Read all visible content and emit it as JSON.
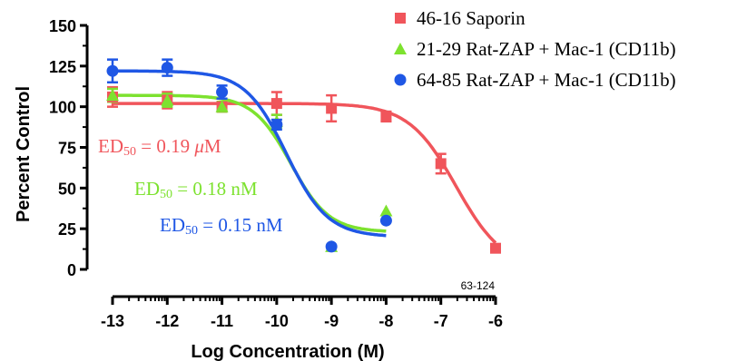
{
  "chart_data": {
    "type": "scatter",
    "xlabel": "Log Concentration (M)",
    "ylabel": "Percent Control",
    "xlim": [
      -13,
      -6
    ],
    "ylim": [
      0,
      150
    ],
    "xticks": [
      "-13",
      "-12",
      "-11",
      "-10",
      "-9",
      "-8",
      "-7",
      "-6"
    ],
    "yticks": [
      "0",
      "25",
      "50",
      "75",
      "100",
      "125",
      "150"
    ],
    "series": [
      {
        "name": "46-16 Saporin",
        "color": "#f0555b",
        "marker": "square",
        "x": [
          -13,
          -12,
          -11,
          -10,
          -9,
          -8,
          -7,
          -6
        ],
        "y": [
          106,
          104,
          100,
          102,
          99,
          94,
          65,
          13
        ],
        "err": [
          6,
          5,
          3,
          7,
          8,
          3,
          6,
          0
        ],
        "fit": {
          "top": 102,
          "bottom": 0,
          "logEC50": -6.72,
          "hill": 1.0
        }
      },
      {
        "name": "21-29 Rat-ZAP + Mac-1 (CD11b)",
        "color": "#7de22f",
        "marker": "triangle",
        "x": [
          -13,
          -12,
          -11,
          -10,
          -9,
          -8
        ],
        "y": [
          107,
          104,
          100,
          91,
          14,
          36
        ],
        "err": [
          4,
          4,
          3,
          4,
          0,
          0
        ],
        "fit": {
          "top": 107,
          "bottom": 23,
          "logEC50": -9.74,
          "hill": 1.25
        }
      },
      {
        "name": "64-85 Rat-ZAP + Mac-1 (CD11b)",
        "color": "#1f57e5",
        "marker": "circle",
        "x": [
          -13,
          -12,
          -11,
          -10,
          -9,
          -8
        ],
        "y": [
          122,
          124,
          109,
          89,
          14,
          30
        ],
        "err": [
          7,
          5,
          4,
          3,
          0,
          0
        ],
        "fit": {
          "top": 122,
          "bottom": 20,
          "logEC50": -9.82,
          "hill": 1.15
        }
      }
    ],
    "annotations": [
      {
        "prefix": "ED",
        "sub": "50",
        "rest": " = 0.19 ",
        "unit_greek": "μ",
        "unit": "M",
        "color": "#f0555b"
      },
      {
        "prefix": "ED",
        "sub": "50",
        "rest": " = 0.18 nM",
        "unit_greek": "",
        "unit": "",
        "color": "#7de22f"
      },
      {
        "prefix": "ED",
        "sub": "50",
        "rest": " = 0.15 nM",
        "unit_greek": "",
        "unit": "",
        "color": "#1f57e5"
      }
    ],
    "reference_label": "63-124",
    "legend_position": "top-right"
  }
}
